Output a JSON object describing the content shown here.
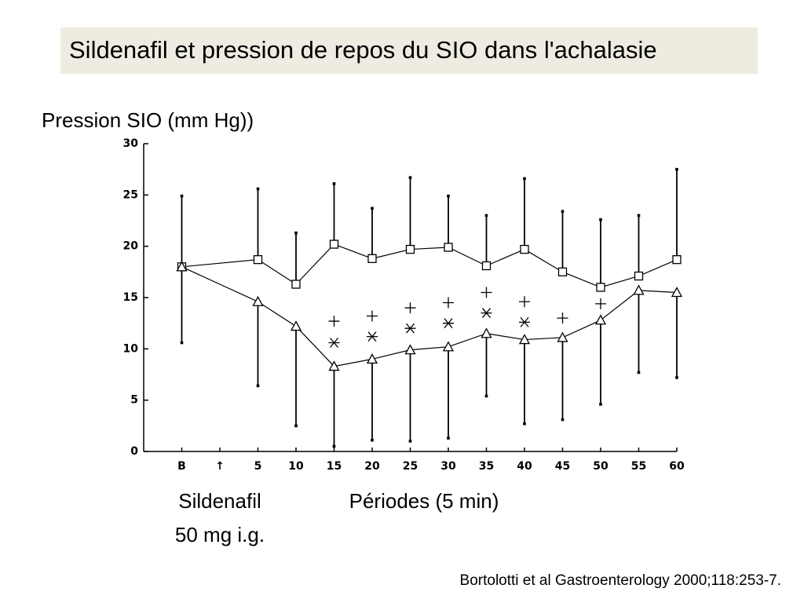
{
  "chart_data": {
    "type": "line",
    "title": "Sildenafil et pression de repos du SIO dans l'achalasie",
    "y_label": "Pression SIO (mm Hg))",
    "x_label": "Périodes (5 min)",
    "annotations": [
      "Sildenafil",
      "50 mg i.g."
    ],
    "source": "Bortolotti et al Gastroenterology 2000;118:253-7.",
    "x": [
      -5,
      5,
      10,
      15,
      20,
      25,
      30,
      35,
      40,
      45,
      50,
      55,
      60
    ],
    "xlim": [
      -10,
      60
    ],
    "xticks": [
      {
        "value": -5,
        "label": "B"
      },
      {
        "value": 0,
        "label": "↑"
      },
      5,
      10,
      15,
      20,
      25,
      30,
      35,
      40,
      45,
      50,
      55,
      60
    ],
    "ylim": [
      0,
      30
    ],
    "yticks": [
      0,
      5,
      10,
      15,
      20,
      25,
      30
    ],
    "series": [
      {
        "color": "#000000",
        "marker": "square",
        "line": true,
        "error_direction": "up",
        "values": [
          18.0,
          18.7,
          16.3,
          20.2,
          18.8,
          19.7,
          19.9,
          18.1,
          19.7,
          17.5,
          16.0,
          17.1,
          18.7
        ],
        "errors": [
          6.9,
          6.9,
          5.0,
          5.9,
          4.9,
          7.0,
          5.0,
          4.9,
          6.9,
          5.9,
          6.6,
          5.9,
          8.8
        ]
      },
      {
        "color": "#000000",
        "marker": "triangle",
        "line": true,
        "error_direction": "down",
        "values": [
          18.0,
          14.6,
          12.2,
          8.3,
          9.0,
          9.9,
          10.2,
          11.5,
          10.9,
          11.1,
          12.8,
          15.7,
          15.5
        ],
        "errors": [
          7.4,
          8.2,
          9.7,
          7.8,
          7.9,
          8.9,
          8.9,
          6.1,
          8.2,
          8.0,
          8.2,
          8.0,
          8.3
        ]
      },
      {
        "color": "#000000",
        "marker": "plus",
        "line": false,
        "values": [
          null,
          null,
          null,
          12.7,
          13.2,
          14.0,
          14.5,
          15.5,
          14.6,
          13.0,
          14.4,
          null,
          null
        ]
      },
      {
        "color": "#000000",
        "marker": "asterisk",
        "line": false,
        "values": [
          null,
          null,
          null,
          10.6,
          11.2,
          12.0,
          12.5,
          13.5,
          12.6,
          null,
          null,
          null,
          null
        ]
      }
    ]
  }
}
